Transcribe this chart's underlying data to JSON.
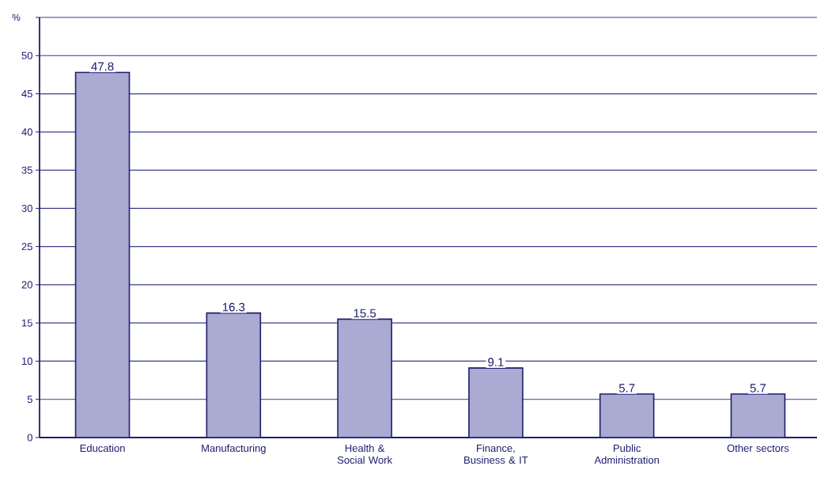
{
  "chart_data": {
    "type": "bar",
    "ylabel": "%",
    "categories": [
      "Education",
      "Manufacturing",
      "Health & Social Work",
      "Finance, Business & IT",
      "Public Administration",
      "Other sectors"
    ],
    "values": [
      47.8,
      16.3,
      15.5,
      9.1,
      5.7,
      5.7
    ],
    "color": "#aaaad2",
    "ylim": [
      0,
      55
    ],
    "yticks": [
      0,
      5,
      10,
      15,
      20,
      25,
      30,
      35,
      40,
      45,
      50,
      {
        "value": 55,
        "label": null
      }
    ],
    "grid": "y",
    "data_labels": true
  }
}
